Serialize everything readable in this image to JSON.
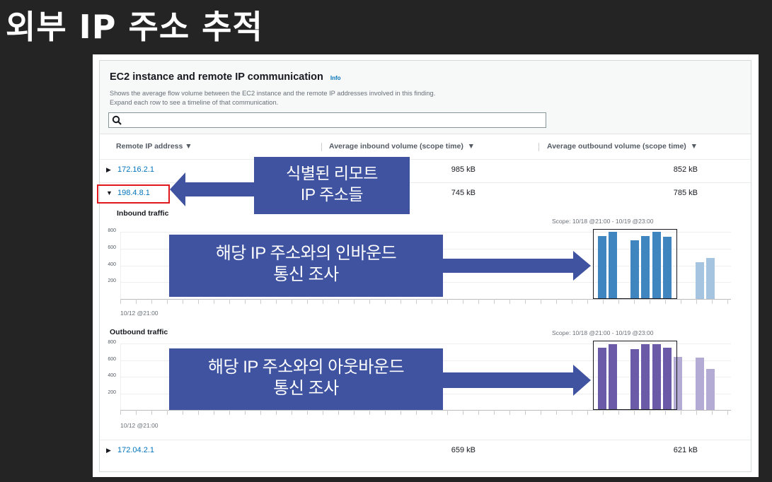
{
  "slide_title": "외부 IP 주소 추적",
  "panel": {
    "title": "EC2 instance and remote IP communication",
    "info_label": "Info",
    "description_line1": "Shows the average flow volume between the EC2 instance and the remote IP addresses involved in this finding.",
    "description_line2": "Expand each row to see a timeline of that communication.",
    "search": {
      "placeholder": "",
      "value": ""
    },
    "columns": [
      "Remote IP address",
      "Average inbound volume (scope time)",
      "Average outbound volume (scope time)"
    ],
    "rows": [
      {
        "ip": "172.16.2.1",
        "inbound": "985 kB",
        "outbound": "852 kB",
        "expanded": false
      },
      {
        "ip": "198.4.8.1",
        "inbound": "745 kB",
        "outbound": "785 kB",
        "expanded": true
      },
      {
        "ip": "172.04.2.1",
        "inbound": "659 kB",
        "outbound": "621 kB",
        "expanded": false
      }
    ]
  },
  "annotations": {
    "ip_box_line1": "식별된 리모트",
    "ip_box_line2": "IP 주소들",
    "inbound_box_line1": "해당 IP 주소와의 인바운드",
    "inbound_box_line2": "통신 조사",
    "outbound_box_line1": "해당 IP 주소와의 아웃바운드",
    "outbound_box_line2": "통신 조사",
    "box_color": "#3f53a0",
    "highlight_color": "#e0191f"
  },
  "chart_data": [
    {
      "type": "bar",
      "title": "Inbound traffic",
      "scope": "Scope: 10/18 @21:00 - 10/19 @23:00",
      "x_start_label": "10/12 @21:00",
      "yticks": [
        "200",
        "400",
        "600",
        "800"
      ],
      "ylim": [
        0,
        800
      ],
      "slots": [
        0,
        1,
        3,
        4,
        5,
        6,
        9,
        10
      ],
      "values": [
        750,
        800,
        700,
        750,
        800,
        740,
        440,
        490
      ],
      "in_scope": [
        true,
        true,
        true,
        true,
        true,
        true,
        false,
        false
      ],
      "color": "#3f86c0",
      "color_out_of_scope": "#a5c4e0"
    },
    {
      "type": "bar",
      "title": "Outbound traffic",
      "scope": "Scope: 10/18 @21:00 - 10/19 @23:00",
      "x_start_label": "10/12 @21:00",
      "yticks": [
        "200",
        "400",
        "600",
        "800"
      ],
      "ylim": [
        0,
        800
      ],
      "slots": [
        0,
        1,
        3,
        4,
        5,
        6,
        7,
        9,
        10
      ],
      "values": [
        750,
        790,
        730,
        790,
        790,
        750,
        640,
        630,
        490
      ],
      "in_scope": [
        true,
        true,
        true,
        true,
        true,
        true,
        false,
        false,
        false
      ],
      "color": "#6a5aa8",
      "color_out_of_scope": "#b3abd4"
    }
  ]
}
